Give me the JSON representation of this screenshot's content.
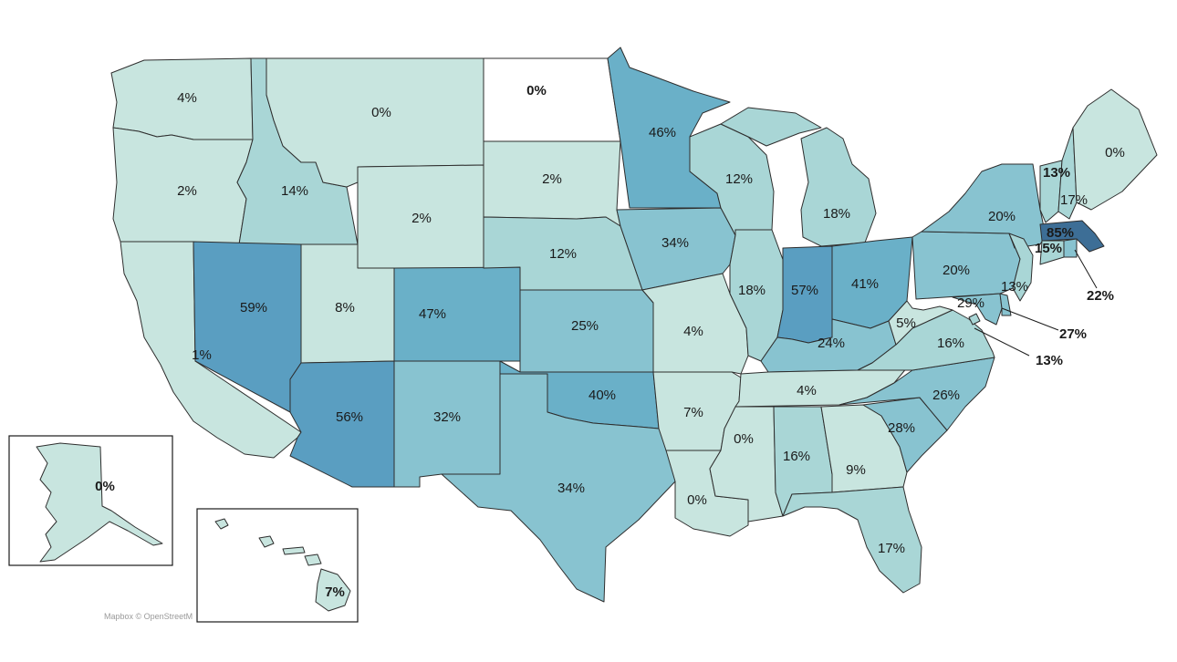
{
  "map": {
    "attribution": "Mapbox © OpenStreetM",
    "color_scale": [
      "#ffffff",
      "#c8e5df",
      "#a9d6d6",
      "#88c3d0",
      "#6ab0c8",
      "#5a9ec1",
      "#3d6e96"
    ],
    "states": [
      {
        "id": "WA",
        "value": "4%"
      },
      {
        "id": "OR",
        "value": "2%"
      },
      {
        "id": "CA",
        "value": "1%"
      },
      {
        "id": "ID",
        "value": "14%"
      },
      {
        "id": "NV",
        "value": "59%"
      },
      {
        "id": "MT",
        "value": "0%"
      },
      {
        "id": "WY",
        "value": "2%"
      },
      {
        "id": "UT",
        "value": "8%"
      },
      {
        "id": "AZ",
        "value": "56%"
      },
      {
        "id": "CO",
        "value": "47%"
      },
      {
        "id": "NM",
        "value": "32%"
      },
      {
        "id": "ND",
        "value": "0%"
      },
      {
        "id": "SD",
        "value": "2%"
      },
      {
        "id": "NE",
        "value": "12%"
      },
      {
        "id": "KS",
        "value": "25%"
      },
      {
        "id": "OK",
        "value": "40%"
      },
      {
        "id": "TX",
        "value": "34%"
      },
      {
        "id": "MN",
        "value": "46%"
      },
      {
        "id": "IA",
        "value": "34%"
      },
      {
        "id": "MO",
        "value": "4%"
      },
      {
        "id": "AR",
        "value": "7%"
      },
      {
        "id": "LA",
        "value": "0%"
      },
      {
        "id": "WI",
        "value": "12%"
      },
      {
        "id": "IL",
        "value": "18%"
      },
      {
        "id": "MI",
        "value": "18%"
      },
      {
        "id": "IN",
        "value": "57%"
      },
      {
        "id": "OH",
        "value": "41%"
      },
      {
        "id": "KY",
        "value": "24%"
      },
      {
        "id": "TN",
        "value": "4%"
      },
      {
        "id": "MS",
        "value": "0%"
      },
      {
        "id": "AL",
        "value": "16%"
      },
      {
        "id": "GA",
        "value": "9%"
      },
      {
        "id": "FL",
        "value": "17%"
      },
      {
        "id": "SC",
        "value": "28%"
      },
      {
        "id": "NC",
        "value": "26%"
      },
      {
        "id": "VA",
        "value": "16%"
      },
      {
        "id": "WV",
        "value": "5%"
      },
      {
        "id": "PA",
        "value": "20%"
      },
      {
        "id": "NY",
        "value": "20%"
      },
      {
        "id": "NJ",
        "value": "13%"
      },
      {
        "id": "MD",
        "value": "29%"
      },
      {
        "id": "DE",
        "value": "27%"
      },
      {
        "id": "DC",
        "value": "13%"
      },
      {
        "id": "VT",
        "value": "13%"
      },
      {
        "id": "NH",
        "value": "17%"
      },
      {
        "id": "ME",
        "value": "0%"
      },
      {
        "id": "MA",
        "value": "85%"
      },
      {
        "id": "CT",
        "value": "15%"
      },
      {
        "id": "RI",
        "value": "22%"
      },
      {
        "id": "AK",
        "value": "0%"
      },
      {
        "id": "HI",
        "value": "7%"
      }
    ]
  }
}
